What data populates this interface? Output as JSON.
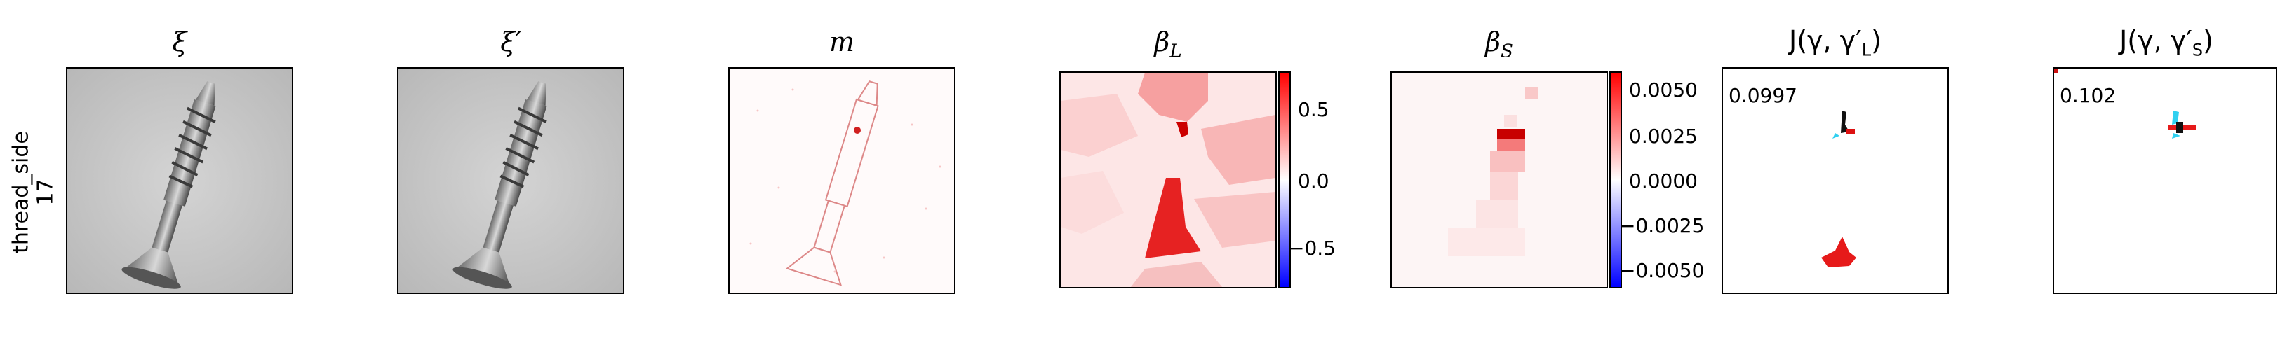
{
  "row_label": {
    "line1": "thread_side",
    "line2": "17"
  },
  "panels": [
    {
      "key": "xi",
      "title": "ξ"
    },
    {
      "key": "xi_prime",
      "title": "ξ′"
    },
    {
      "key": "m",
      "title": "m"
    },
    {
      "key": "beta_L",
      "title": "βL",
      "title_main": "β",
      "title_sub": "L"
    },
    {
      "key": "beta_S",
      "title": "βS",
      "title_main": "β",
      "title_sub": "S"
    },
    {
      "key": "J_L",
      "title": "J(γ, γ′L)",
      "title_pre": "J(γ, γ′",
      "title_sub": "L",
      "title_post": ")"
    },
    {
      "key": "J_S",
      "title": "J(γ, γ′S)",
      "title_pre": "J(γ, γ′",
      "title_sub": "S",
      "title_post": ")"
    }
  ],
  "colorbar_L": {
    "ticks": [
      "0.5",
      "0.0",
      "−0.5"
    ],
    "colors": {
      "top": "#ff0000",
      "mid": "#ffffff",
      "bottom": "#0000ff"
    }
  },
  "colorbar_S": {
    "ticks": [
      "0.0050",
      "0.0025",
      "0.0000",
      "−0.0025",
      "−0.0050"
    ],
    "colors": {
      "top": "#ff0000",
      "mid": "#ffffff",
      "bottom": "#0000ff"
    }
  },
  "scores": {
    "J_L": "0.0997",
    "J_S": "0.102"
  }
}
